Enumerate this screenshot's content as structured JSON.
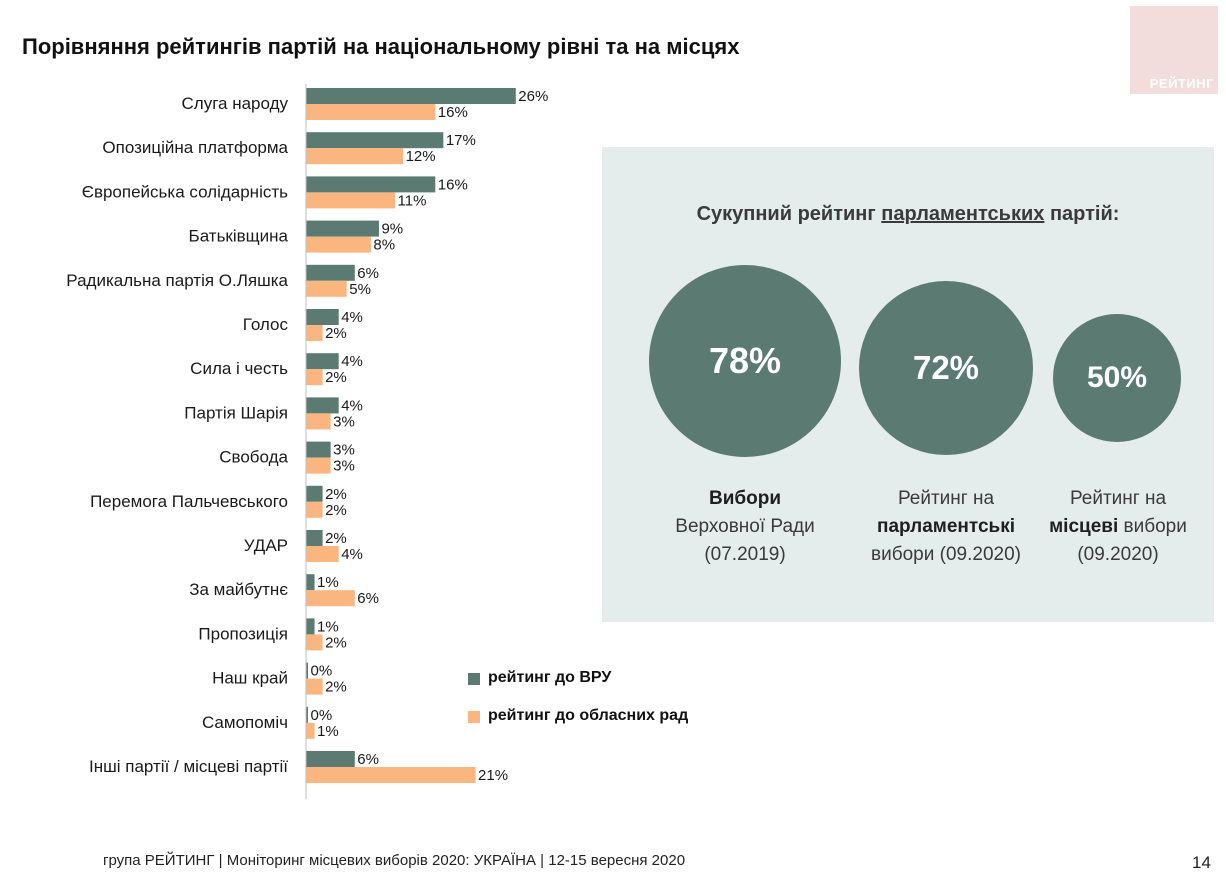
{
  "title": "Порівняння рейтингів партій на національному рівні та на місцях",
  "logo_text": "РЕЙТИНГ",
  "chart_data": {
    "type": "bar",
    "orientation": "horizontal",
    "categories": [
      "Слуга народу",
      "Опозиційна платформа",
      "Європейська солідарність",
      "Батьківщина",
      "Радикальна партія О.Ляшка",
      "Голос",
      "Сила і честь",
      "Партія Шарія",
      "Свобода",
      "Перемога Пальчевського",
      "УДАР",
      "За майбутнє",
      "Пропозиція",
      "Наш край",
      "Самопоміч",
      "Інші партії / місцеві партії"
    ],
    "series": [
      {
        "name": "рейтинг до ВРУ",
        "color": "#5b7b72",
        "values": [
          26,
          17,
          16,
          9,
          6,
          4,
          4,
          4,
          3,
          2,
          2,
          1,
          1,
          0,
          0,
          6
        ],
        "labels": [
          "26%",
          "17%",
          "16%",
          "9%",
          "6%",
          "4%",
          "4%",
          "4%",
          "3%",
          "2%",
          "2%",
          "1%",
          "1%",
          "0%",
          "0%",
          "6%"
        ]
      },
      {
        "name": "рейтинг до обласних рад",
        "color": "#fbb57e",
        "values": [
          16,
          12,
          11,
          8,
          5,
          2,
          2,
          3,
          3,
          2,
          4,
          6,
          2,
          2,
          1,
          21
        ],
        "labels": [
          "16%",
          "12%",
          "11%",
          "8%",
          "5%",
          "2%",
          "2%",
          "3%",
          "3%",
          "2%",
          "4%",
          "6%",
          "2%",
          "2%",
          "1%",
          "21%"
        ]
      }
    ],
    "xlim": [
      0,
      28
    ]
  },
  "legend": [
    {
      "label": "рейтинг до ВРУ",
      "color": "#5b7b72"
    },
    {
      "label": "рейтинг до обласних рад",
      "color": "#fbb57e"
    }
  ],
  "panel": {
    "title_pre": "Сукупний рейтинг ",
    "title_underlined": "парламентських",
    "title_post": " партій:",
    "circles": [
      {
        "value": "78%",
        "cap_bold1": "Вибори",
        "cap_rest": "Верховної Ради (07.2019)"
      },
      {
        "value": "72%",
        "cap_pre": "Рейтинг на",
        "cap_bold": "парламентські",
        "cap_post": "вибори (09.2020)"
      },
      {
        "value": "50%",
        "cap_pre": "Рейтинг на",
        "cap_bold": "місцеві",
        "cap_post": " вибори (09.2020)"
      }
    ]
  },
  "footer": "група РЕЙТИНГ | Моніторинг місцевих виборів 2020: УКРАЇНА | 12-15 вересня 2020",
  "page_number": "14"
}
